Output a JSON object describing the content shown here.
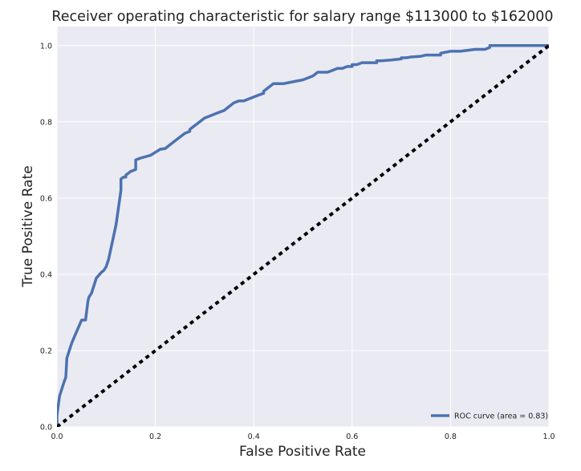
{
  "chart_data": {
    "type": "line",
    "title": "Receiver operating characteristic for salary range $113000 to $162000",
    "xlabel": "False Positive Rate",
    "ylabel": "True Positive Rate",
    "xlim": [
      0.0,
      1.0
    ],
    "ylim": [
      0.0,
      1.05
    ],
    "xticks": [
      "0.0",
      "0.2",
      "0.4",
      "0.6",
      "0.8",
      "1.0"
    ],
    "yticks": [
      "0.0",
      "0.2",
      "0.4",
      "0.6",
      "0.8",
      "1.0"
    ],
    "grid": true,
    "legend_position": "lower-right",
    "colors": {
      "background": "#eaeaf2",
      "grid": "#ffffff",
      "roc": "#4c72b0",
      "chance": "#000000"
    },
    "series": [
      {
        "name": "ROC curve (area = 0.83)",
        "style": "solid",
        "x": [
          0.0,
          0.0,
          0.005,
          0.01,
          0.015,
          0.018,
          0.02,
          0.025,
          0.03,
          0.04,
          0.05,
          0.052,
          0.058,
          0.06,
          0.063,
          0.065,
          0.07,
          0.075,
          0.08,
          0.09,
          0.095,
          0.1,
          0.105,
          0.12,
          0.13,
          0.13,
          0.135,
          0.14,
          0.14,
          0.15,
          0.16,
          0.16,
          0.17,
          0.19,
          0.2,
          0.21,
          0.22,
          0.23,
          0.25,
          0.26,
          0.27,
          0.27,
          0.28,
          0.3,
          0.31,
          0.32,
          0.33,
          0.34,
          0.35,
          0.36,
          0.37,
          0.38,
          0.39,
          0.4,
          0.41,
          0.42,
          0.42,
          0.43,
          0.44,
          0.45,
          0.46,
          0.48,
          0.5,
          0.52,
          0.53,
          0.54,
          0.55,
          0.56,
          0.57,
          0.58,
          0.59,
          0.6,
          0.6,
          0.61,
          0.62,
          0.64,
          0.65,
          0.65,
          0.66,
          0.68,
          0.7,
          0.7,
          0.71,
          0.72,
          0.74,
          0.75,
          0.76,
          0.78,
          0.78,
          0.8,
          0.81,
          0.82,
          0.85,
          0.87,
          0.88,
          0.88,
          0.9,
          0.93,
          0.95,
          1.0
        ],
        "y": [
          0.0,
          0.03,
          0.08,
          0.1,
          0.12,
          0.13,
          0.18,
          0.2,
          0.22,
          0.25,
          0.28,
          0.28,
          0.28,
          0.3,
          0.33,
          0.34,
          0.35,
          0.37,
          0.39,
          0.405,
          0.41,
          0.42,
          0.44,
          0.53,
          0.62,
          0.65,
          0.655,
          0.655,
          0.66,
          0.67,
          0.675,
          0.7,
          0.705,
          0.712,
          0.72,
          0.728,
          0.73,
          0.74,
          0.76,
          0.77,
          0.775,
          0.78,
          0.79,
          0.81,
          0.815,
          0.82,
          0.825,
          0.83,
          0.84,
          0.85,
          0.855,
          0.855,
          0.86,
          0.865,
          0.87,
          0.875,
          0.88,
          0.89,
          0.9,
          0.9,
          0.9,
          0.905,
          0.91,
          0.92,
          0.93,
          0.93,
          0.93,
          0.935,
          0.94,
          0.94,
          0.945,
          0.945,
          0.95,
          0.95,
          0.955,
          0.955,
          0.955,
          0.96,
          0.96,
          0.962,
          0.965,
          0.968,
          0.968,
          0.97,
          0.972,
          0.975,
          0.975,
          0.975,
          0.98,
          0.985,
          0.985,
          0.985,
          0.99,
          0.99,
          0.995,
          1.0,
          1.0,
          1.0,
          1.0,
          1.0
        ]
      },
      {
        "name": "",
        "style": "dashed",
        "x": [
          0.0,
          1.0
        ],
        "y": [
          0.0,
          1.0
        ]
      }
    ]
  }
}
